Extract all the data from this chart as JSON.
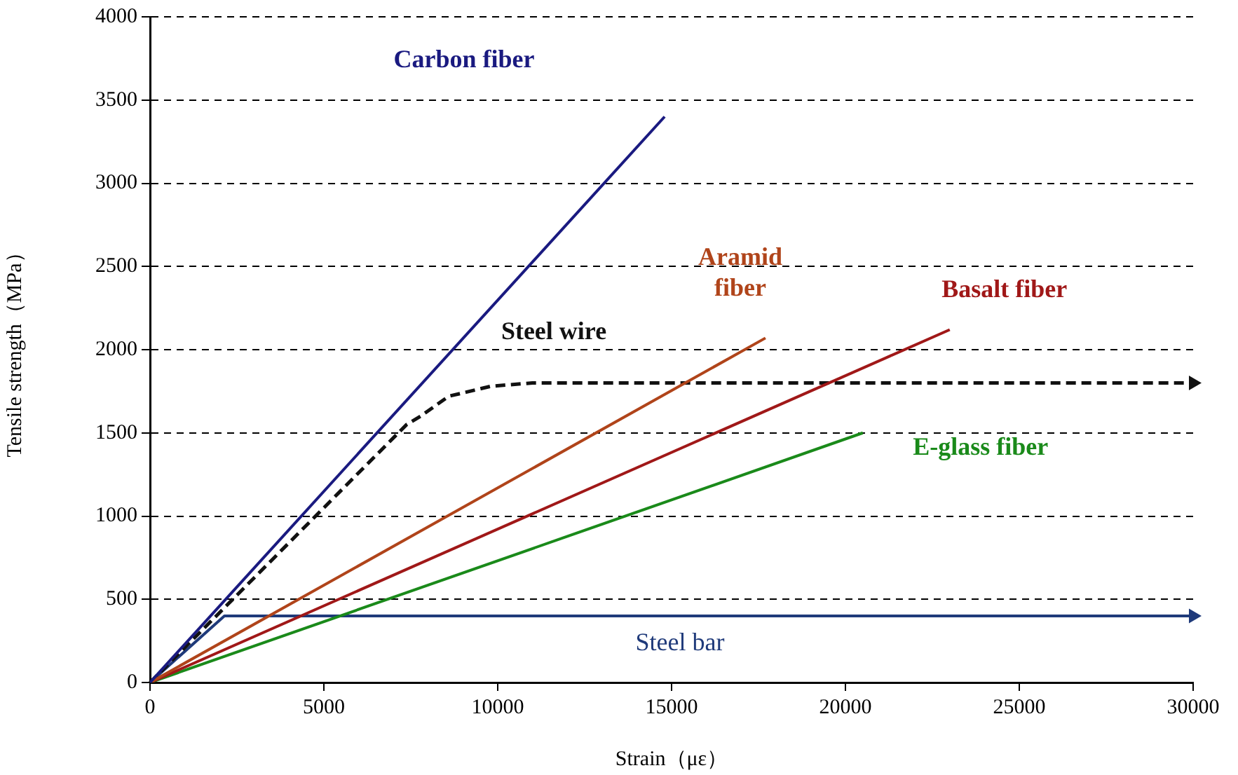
{
  "chart_data": {
    "type": "line",
    "xlabel": "Strain（με）",
    "ylabel": "Tensile strength（MPa）",
    "xlim": [
      0,
      30000
    ],
    "xticks": [
      0,
      5000,
      10000,
      15000,
      20000,
      25000,
      30000
    ],
    "ylim": [
      0,
      4000
    ],
    "yticks": [
      0,
      500,
      1000,
      1500,
      2000,
      2500,
      3000,
      3500,
      4000
    ],
    "grid": "y",
    "legend": false,
    "marker": "none",
    "line_style": "solid",
    "series": [
      {
        "name": "Carbon fiber",
        "color": "#1a1a80",
        "x": [
          0,
          14800
        ],
        "values": [
          0,
          3400
        ]
      },
      {
        "name": "Aramid fiber",
        "color": "#b0441a",
        "x": [
          0,
          17700
        ],
        "values": [
          0,
          2070
        ]
      },
      {
        "name": "Basalt fiber",
        "color": "#a01818",
        "x": [
          0,
          23000
        ],
        "values": [
          0,
          2120
        ]
      },
      {
        "name": "E-glass fiber",
        "color": "#1a8a1a",
        "x": [
          0,
          20500
        ],
        "values": [
          0,
          1500
        ]
      },
      {
        "name": "Steel wire",
        "color": "#111111",
        "line_style": "dashed",
        "x": [
          0,
          7380,
          7780,
          8590,
          9800,
          11000,
          30000
        ],
        "values": [
          0,
          1550,
          1600,
          1720,
          1780,
          1800,
          1800
        ]
      },
      {
        "name": "Steel bar",
        "color": "#1f3a7a",
        "x": [
          0,
          2140,
          30000
        ],
        "values": [
          0,
          400,
          400
        ]
      }
    ]
  }
}
